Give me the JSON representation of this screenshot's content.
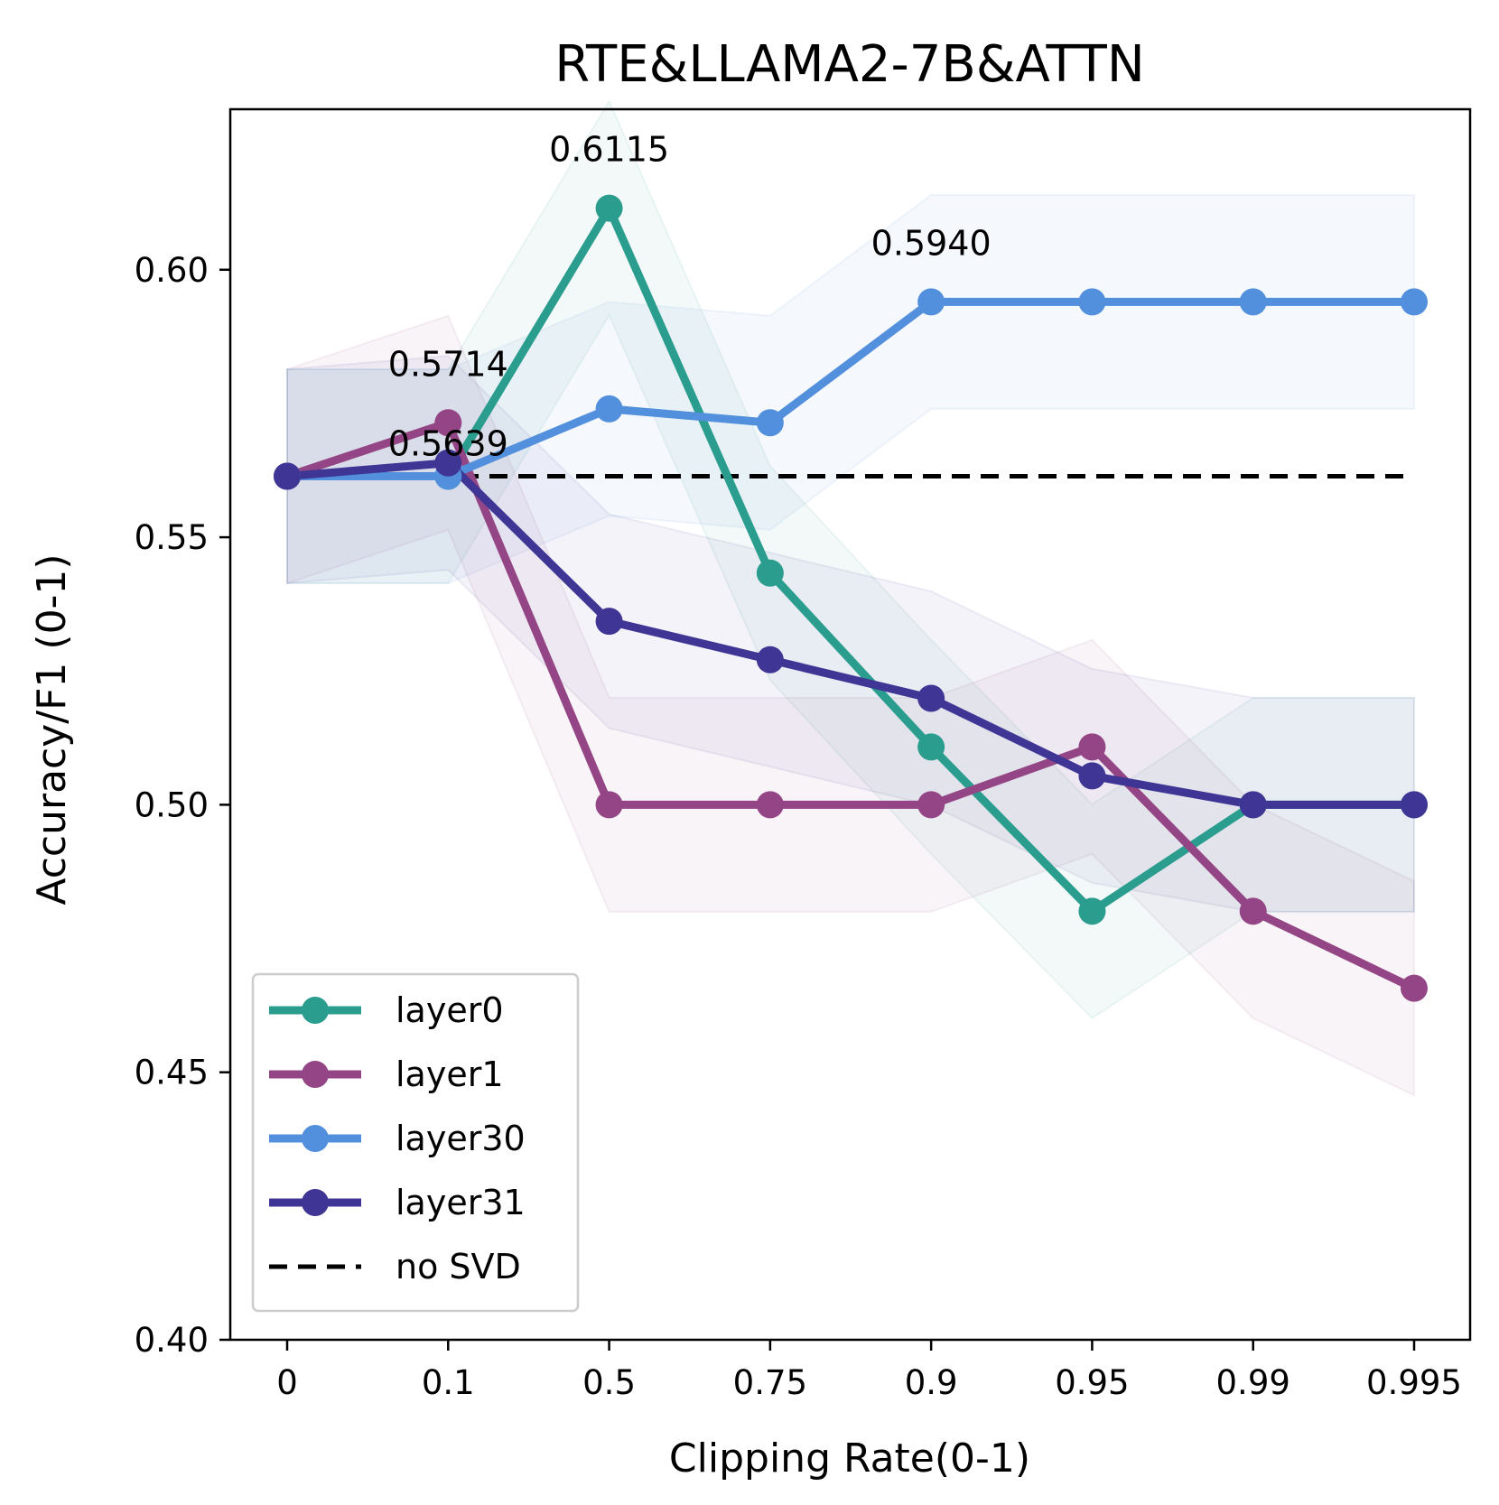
{
  "chart_data": {
    "type": "line",
    "title": "RTE&LLAMA2-7B&ATTN",
    "xlabel": "Clipping Rate(0-1)",
    "ylabel": "Accuracy/F1 (0-1)",
    "categories": [
      "0",
      "0.1",
      "0.5",
      "0.75",
      "0.9",
      "0.95",
      "0.99",
      "0.995"
    ],
    "ylim": [
      0.4,
      0.63
    ],
    "yticks": [
      "0.40",
      "0.45",
      "0.50",
      "0.55",
      "0.60"
    ],
    "legend_position": "lower-left",
    "grid": false,
    "series": [
      {
        "name": "layer0",
        "color": "#2a9d8f",
        "values": [
          0.5614,
          0.5614,
          0.6115,
          0.5433,
          0.5108,
          0.4801,
          0.5,
          0.5
        ],
        "lower": [
          0.5414,
          0.5414,
          0.5915,
          0.5233,
          0.4908,
          0.4601,
          0.48,
          0.48
        ],
        "upper": [
          0.5814,
          0.5814,
          0.6315,
          0.5633,
          0.5308,
          0.5001,
          0.52,
          0.52
        ]
      },
      {
        "name": "layer1",
        "color": "#944585",
        "values": [
          0.5614,
          0.5714,
          0.5,
          0.5,
          0.5,
          0.5108,
          0.4801,
          0.4657
        ],
        "lower": [
          0.5414,
          0.5514,
          0.48,
          0.48,
          0.48,
          0.4908,
          0.4601,
          0.4457
        ],
        "upper": [
          0.5814,
          0.5914,
          0.52,
          0.52,
          0.52,
          0.5308,
          0.5001,
          0.4857
        ]
      },
      {
        "name": "layer30",
        "color": "#528fdc",
        "values": [
          0.5614,
          0.5614,
          0.574,
          0.5714,
          0.594,
          0.594,
          0.594,
          0.594
        ],
        "lower": [
          0.5414,
          0.5414,
          0.554,
          0.5514,
          0.574,
          0.574,
          0.574,
          0.574
        ],
        "upper": [
          0.5814,
          0.5814,
          0.594,
          0.5914,
          0.614,
          0.614,
          0.614,
          0.614
        ]
      },
      {
        "name": "layer31",
        "color": "#3f3595",
        "values": [
          0.5614,
          0.5639,
          0.5343,
          0.5271,
          0.5199,
          0.5054,
          0.5,
          0.5
        ],
        "lower": [
          0.5414,
          0.5439,
          0.5143,
          0.5071,
          0.4999,
          0.4854,
          0.48,
          0.48
        ],
        "upper": [
          0.5814,
          0.5839,
          0.5543,
          0.5471,
          0.5399,
          0.5254,
          0.52,
          0.52
        ]
      }
    ],
    "baseline": {
      "name": "no SVD",
      "value": 0.5614,
      "color": "#000000"
    },
    "annotations": [
      {
        "text": "0.6115",
        "x_index": 2,
        "y": 0.6115
      },
      {
        "text": "0.5940",
        "x_index": 4,
        "y": 0.594
      },
      {
        "text": "0.5714",
        "x_index": 1,
        "y": 0.5714
      },
      {
        "text": "0.5639",
        "x_index": 1,
        "y": 0.5639
      }
    ]
  }
}
